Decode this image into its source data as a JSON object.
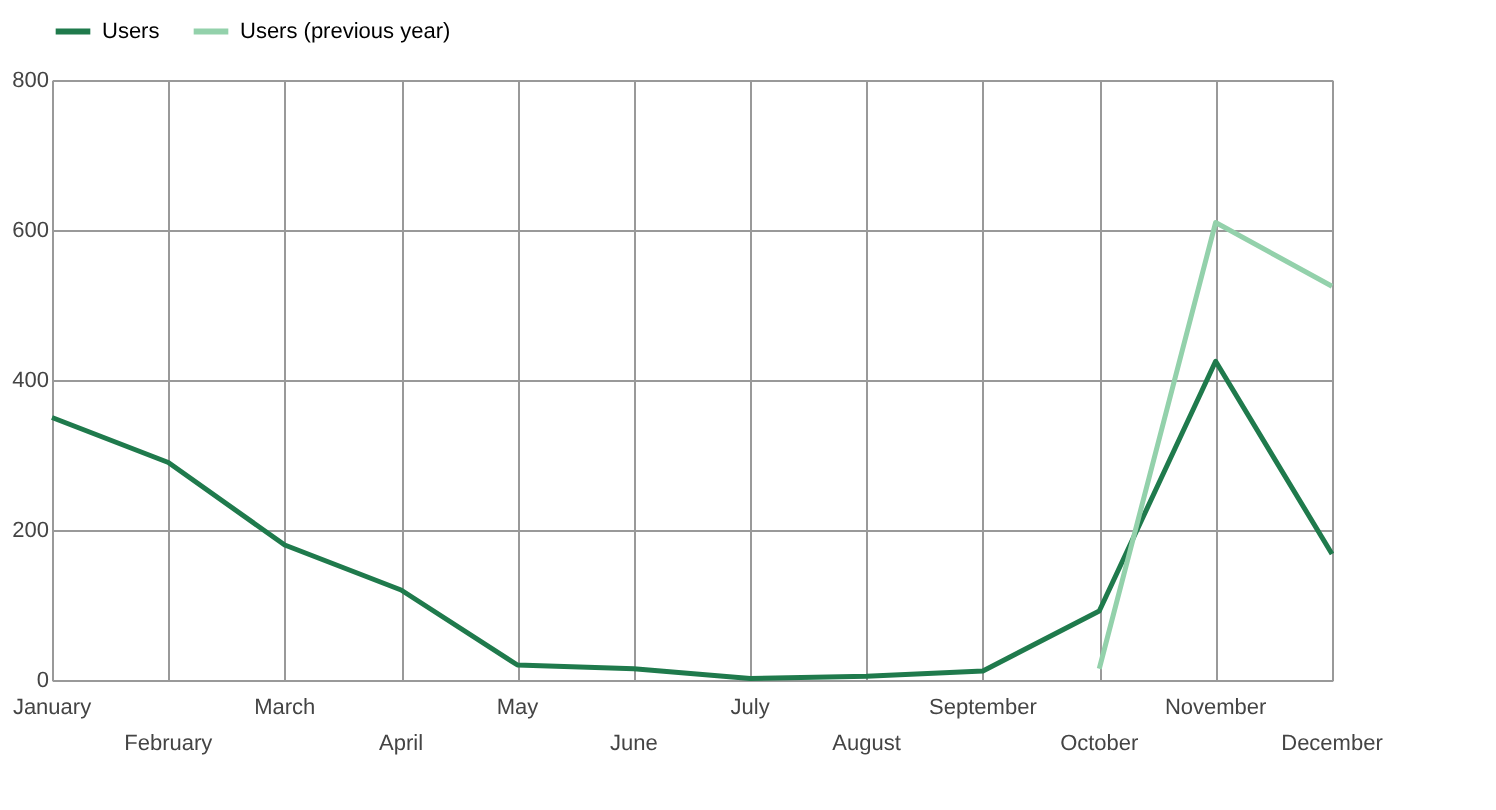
{
  "chart_data": {
    "type": "line",
    "categories": [
      "January",
      "February",
      "March",
      "April",
      "May",
      "June",
      "July",
      "August",
      "September",
      "October",
      "November",
      "December"
    ],
    "series": [
      {
        "name": "Users",
        "color": "#1f7a4c",
        "values": [
          350,
          290,
          180,
          120,
          20,
          15,
          2,
          5,
          12,
          92,
          425,
          168
        ]
      },
      {
        "name": "Users (previous year)",
        "color": "#93d1ab",
        "values": [
          null,
          null,
          null,
          null,
          null,
          null,
          null,
          null,
          null,
          15,
          610,
          525
        ]
      }
    ],
    "ylim": [
      0,
      800
    ],
    "yticks": [
      0,
      200,
      400,
      600,
      800
    ],
    "grid": true,
    "legend": "top left",
    "marker": "none",
    "line_style": "solid"
  }
}
